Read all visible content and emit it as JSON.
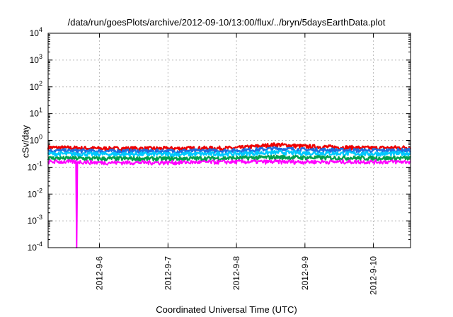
{
  "chart_data": {
    "type": "line",
    "title": "/data/run/goesPlots/archive/2012-09-10/13:00/flux/../bryn/5daysEarthData.plot",
    "xlabel": "Coordinated Universal Time (UTC)",
    "ylabel": "cSv/day",
    "yscale": "log",
    "ylim": [
      0.0001,
      10000
    ],
    "xlim": [
      "2012-09-05 06:00",
      "2012-09-10 13:00"
    ],
    "x_ticks": [
      "2012-9-6",
      "2012-9-7",
      "2012-9-8",
      "2012-9-9",
      "2012-9-10"
    ],
    "y_ticks": [
      {
        "base": "10",
        "exp": "-4"
      },
      {
        "base": "10",
        "exp": "-3"
      },
      {
        "base": "10",
        "exp": "-2"
      },
      {
        "base": "10",
        "exp": "-1"
      },
      {
        "base": "10",
        "exp": "0"
      },
      {
        "base": "10",
        "exp": "1"
      },
      {
        "base": "10",
        "exp": "2"
      },
      {
        "base": "10",
        "exp": "3"
      },
      {
        "base": "10",
        "exp": "4"
      }
    ],
    "grid": true,
    "legend": "none",
    "series": [
      {
        "color": "#ee0000",
        "x": [
          "2012-09-05 06:00",
          "2012-09-06 00:00",
          "2012-09-07 00:00",
          "2012-09-08 00:00",
          "2012-09-08 14:00",
          "2012-09-09 00:00",
          "2012-09-10 00:00",
          "2012-09-10 13:00"
        ],
        "values": [
          0.55,
          0.5,
          0.5,
          0.52,
          0.7,
          0.6,
          0.52,
          0.55
        ]
      },
      {
        "color": "#1e6fe0",
        "x": [
          "2012-09-05 06:00",
          "2012-09-06 00:00",
          "2012-09-07 00:00",
          "2012-09-08 00:00",
          "2012-09-08 14:00",
          "2012-09-09 00:00",
          "2012-09-10 00:00",
          "2012-09-10 13:00"
        ],
        "values": [
          0.42,
          0.4,
          0.4,
          0.42,
          0.5,
          0.45,
          0.42,
          0.43
        ]
      },
      {
        "color": "#00c8ff",
        "x": [
          "2012-09-05 06:00",
          "2012-09-06 00:00",
          "2012-09-07 00:00",
          "2012-09-08 00:00",
          "2012-09-08 14:00",
          "2012-09-09 00:00",
          "2012-09-10 00:00",
          "2012-09-10 13:00"
        ],
        "values": [
          0.32,
          0.31,
          0.31,
          0.32,
          0.36,
          0.34,
          0.32,
          0.33
        ]
      },
      {
        "color": "#00a050",
        "x": [
          "2012-09-05 06:00",
          "2012-09-06 00:00",
          "2012-09-07 00:00",
          "2012-09-08 00:00",
          "2012-09-08 14:00",
          "2012-09-09 00:00",
          "2012-09-10 00:00",
          "2012-09-10 13:00"
        ],
        "values": [
          0.22,
          0.21,
          0.21,
          0.22,
          0.24,
          0.23,
          0.22,
          0.22
        ]
      },
      {
        "color": "#ff00ff",
        "x": [
          "2012-09-05 06:00",
          "2012-09-05 15:50",
          "2012-09-05 16:00",
          "2012-09-05 16:10",
          "2012-09-06 00:00",
          "2012-09-07 00:00",
          "2012-09-08 00:00",
          "2012-09-09 00:00",
          "2012-09-10 00:00",
          "2012-09-10 13:00"
        ],
        "values": [
          0.16,
          0.16,
          0.0001,
          0.16,
          0.15,
          0.15,
          0.16,
          0.16,
          0.16,
          0.16
        ]
      }
    ]
  }
}
